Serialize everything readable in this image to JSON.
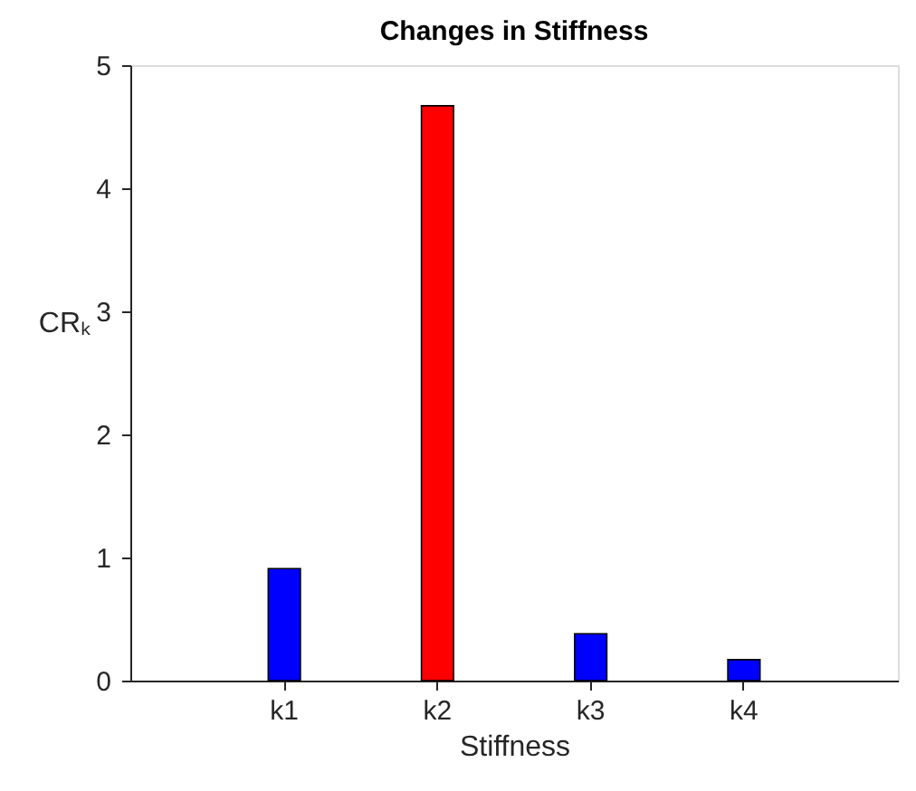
{
  "chart_data": {
    "type": "bar",
    "title": "Changes in Stiffness",
    "xlabel": "Stiffness",
    "ylabel": "CRₖ",
    "categories": [
      "k1",
      "k2",
      "k3",
      "k4"
    ],
    "values": [
      0.91,
      4.67,
      0.38,
      0.17
    ],
    "colors": [
      "#0000ff",
      "#ff0000",
      "#0000ff",
      "#0000ff"
    ],
    "ylim": [
      0,
      5
    ],
    "yticks": [
      0,
      1,
      2,
      3,
      4,
      5
    ],
    "grid": false
  }
}
